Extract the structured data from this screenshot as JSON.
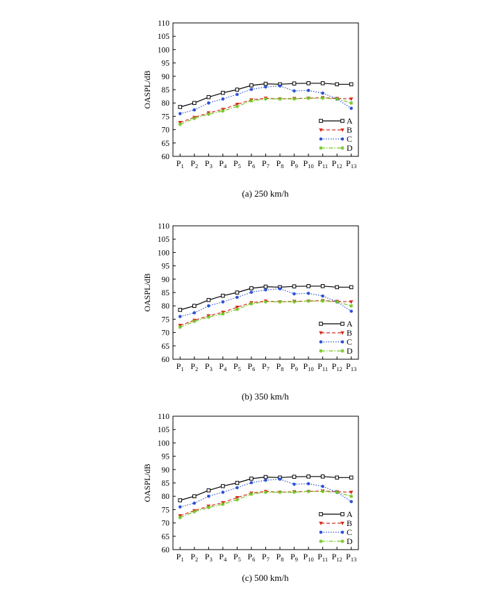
{
  "chart_data": [
    {
      "type": "line",
      "caption": "(a) 250 km/h",
      "ylabel": "OASPL/dB",
      "xlabel": "",
      "ylim": [
        60,
        110
      ],
      "yticks": [
        60,
        65,
        70,
        75,
        80,
        85,
        90,
        95,
        100,
        105,
        110
      ],
      "categories": [
        "P1",
        "P2",
        "P3",
        "P4",
        "P5",
        "P6",
        "P7",
        "P8",
        "P9",
        "P10",
        "P11",
        "P12",
        "P13"
      ],
      "grid": false,
      "legend_position": "lower-right",
      "series": [
        {
          "name": "A",
          "color": "#000000",
          "marker": "square",
          "dash": "solid",
          "values": [
            78.5,
            80.0,
            82.2,
            83.8,
            85.0,
            86.6,
            87.2,
            87.0,
            87.3,
            87.4,
            87.4,
            87.0,
            87.0
          ]
        },
        {
          "name": "B",
          "color": "#d62a1e",
          "marker": "triangle-down",
          "dash": "dashed",
          "values": [
            72.7,
            74.6,
            76.3,
            77.6,
            79.5,
            81.2,
            81.8,
            81.5,
            81.7,
            81.8,
            82.0,
            81.7,
            81.5
          ]
        },
        {
          "name": "C",
          "color": "#2d53d6",
          "marker": "circle",
          "dash": "dotted",
          "values": [
            76.0,
            77.4,
            80.0,
            81.5,
            83.2,
            85.1,
            86.0,
            86.4,
            84.5,
            84.7,
            83.7,
            81.5,
            78.0
          ]
        },
        {
          "name": "D",
          "color": "#72c61f",
          "marker": "star",
          "dash": "dashdot",
          "values": [
            72.0,
            74.2,
            75.8,
            77.0,
            78.7,
            80.8,
            81.5,
            81.5,
            81.5,
            81.8,
            81.8,
            81.5,
            80.0
          ]
        }
      ]
    },
    {
      "type": "line",
      "caption": "(b) 350 km/h",
      "ylabel": "OASPL/dB",
      "xlabel": "",
      "ylim": [
        60,
        110
      ],
      "yticks": [
        60,
        65,
        70,
        75,
        80,
        85,
        90,
        95,
        100,
        105,
        110
      ],
      "categories": [
        "P1",
        "P2",
        "P3",
        "P4",
        "P5",
        "P6",
        "P7",
        "P8",
        "P9",
        "P10",
        "P11",
        "P12",
        "P13"
      ],
      "grid": false,
      "legend_position": "lower-right",
      "series": [
        {
          "name": "A",
          "color": "#000000",
          "marker": "square",
          "dash": "solid",
          "values": [
            78.5,
            80.0,
            82.2,
            83.8,
            85.0,
            86.6,
            87.2,
            87.0,
            87.3,
            87.4,
            87.4,
            87.0,
            87.0
          ]
        },
        {
          "name": "B",
          "color": "#d62a1e",
          "marker": "triangle-down",
          "dash": "dashed",
          "values": [
            72.7,
            74.6,
            76.3,
            77.6,
            79.5,
            81.2,
            81.8,
            81.5,
            81.7,
            81.8,
            82.0,
            81.7,
            81.5
          ]
        },
        {
          "name": "C",
          "color": "#2d53d6",
          "marker": "circle",
          "dash": "dotted",
          "values": [
            76.0,
            77.4,
            80.0,
            81.5,
            83.2,
            85.1,
            86.0,
            86.4,
            84.5,
            84.7,
            83.7,
            81.5,
            78.0
          ]
        },
        {
          "name": "D",
          "color": "#72c61f",
          "marker": "star",
          "dash": "dashdot",
          "values": [
            72.0,
            74.2,
            75.8,
            77.0,
            78.7,
            80.8,
            81.5,
            81.5,
            81.5,
            81.8,
            81.8,
            81.5,
            80.0
          ]
        }
      ]
    },
    {
      "type": "line",
      "caption": "(c) 500 km/h",
      "ylabel": "OASPL/dB",
      "xlabel": "",
      "ylim": [
        60,
        110
      ],
      "yticks": [
        60,
        65,
        70,
        75,
        80,
        85,
        90,
        95,
        100,
        105,
        110
      ],
      "categories": [
        "P1",
        "P2",
        "P3",
        "P4",
        "P5",
        "P6",
        "P7",
        "P8",
        "P9",
        "P10",
        "P11",
        "P12",
        "P13"
      ],
      "grid": false,
      "legend_position": "lower-right",
      "series": [
        {
          "name": "A",
          "color": "#000000",
          "marker": "square",
          "dash": "solid",
          "values": [
            78.5,
            80.0,
            82.2,
            83.8,
            85.0,
            86.6,
            87.2,
            87.0,
            87.3,
            87.4,
            87.4,
            87.0,
            87.0
          ]
        },
        {
          "name": "B",
          "color": "#d62a1e",
          "marker": "triangle-down",
          "dash": "dashed",
          "values": [
            72.7,
            74.6,
            76.3,
            77.6,
            79.5,
            81.2,
            81.8,
            81.5,
            81.7,
            81.8,
            82.0,
            81.7,
            81.5
          ]
        },
        {
          "name": "C",
          "color": "#2d53d6",
          "marker": "circle",
          "dash": "dotted",
          "values": [
            76.0,
            77.4,
            80.0,
            81.5,
            83.2,
            85.1,
            86.0,
            86.4,
            84.5,
            84.7,
            83.7,
            81.5,
            78.0
          ]
        },
        {
          "name": "D",
          "color": "#72c61f",
          "marker": "star",
          "dash": "dashdot",
          "values": [
            72.0,
            74.2,
            75.8,
            77.0,
            78.7,
            80.8,
            81.5,
            81.5,
            81.5,
            81.8,
            81.8,
            81.5,
            80.0
          ]
        }
      ]
    }
  ]
}
